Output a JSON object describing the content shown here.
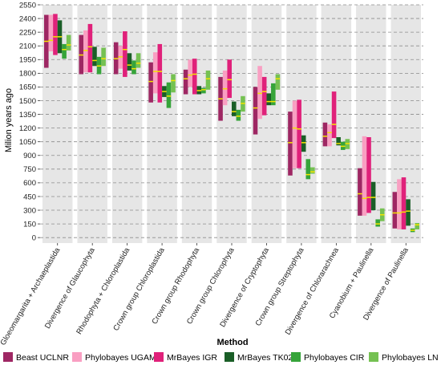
{
  "chart_data": {
    "type": "range-bar",
    "title": "",
    "xlabel": "Method",
    "ylabel": "Milion years ago",
    "ylim": [
      0,
      2500
    ],
    "yticks": [
      0,
      150,
      300,
      450,
      600,
      750,
      900,
      1050,
      1200,
      1350,
      1500,
      1650,
      1800,
      1950,
      2100,
      2250,
      2400,
      2550
    ],
    "grid": true,
    "legend_position": "bottom",
    "categories": [
      "Gloeomargarita + Archaeplastida",
      "Divergence of Glaucophyta",
      "Rhodophyta + Chloroplastida",
      "Crown group Chloroplastida",
      "Crown group Rhodophyta",
      "Crown group Chlorophyta",
      "Divergence of Cryptophyta",
      "Crown group Streptophyta",
      "Divergence of Chlorarachnea",
      "Cyanobium + Paulinella",
      "Divergence of Paulinella"
    ],
    "median_color": "#f4e300",
    "series": [
      {
        "name": "Beast UCLNR",
        "color": "#9e2763",
        "ranges": [
          [
            1860,
            2440
          ],
          [
            1790,
            2220
          ],
          [
            1790,
            2140
          ],
          [
            1480,
            1920
          ],
          [
            1570,
            1840
          ],
          [
            1280,
            1760
          ],
          [
            1130,
            1650
          ],
          [
            680,
            1380
          ],
          [
            1000,
            1260
          ],
          [
            240,
            760
          ],
          [
            100,
            500
          ]
        ],
        "medians": [
          2150,
          2000,
          1960,
          1710,
          1740,
          1520,
          1420,
          1040,
          1110,
          480,
          270
        ]
      },
      {
        "name": "Phylobayes UGAM",
        "color": "#f99fc2",
        "ranges": [
          [
            2040,
            2440
          ],
          [
            1810,
            2270
          ],
          [
            1850,
            2100
          ],
          [
            1580,
            2030
          ],
          [
            1650,
            1950
          ],
          [
            1450,
            1830
          ],
          [
            1300,
            1880
          ],
          [
            760,
            1500
          ],
          [
            1000,
            1240
          ],
          [
            240,
            1110
          ],
          [
            90,
            640
          ]
        ],
        "medians": [
          2160,
          2050,
          1980,
          1820,
          1780,
          1630,
          1580,
          1200,
          1150,
          430,
          270
        ]
      },
      {
        "name": "MrBayes IGR",
        "color": "#e0217a",
        "ranges": [
          [
            2000,
            2450
          ],
          [
            1810,
            2340
          ],
          [
            1760,
            2260
          ],
          [
            1480,
            2120
          ],
          [
            1570,
            1960
          ],
          [
            1530,
            1950
          ],
          [
            1340,
            1760
          ],
          [
            760,
            1510
          ],
          [
            1090,
            1600
          ],
          [
            270,
            1100
          ],
          [
            90,
            660
          ]
        ],
        "medians": [
          2200,
          2090,
          2060,
          1820,
          1790,
          1730,
          1600,
          1190,
          1240,
          440,
          280
        ]
      },
      {
        "name": "MrBayes TK02",
        "color": "#1a5e27",
        "ranges": [
          [
            2020,
            2380
          ],
          [
            1880,
            2090
          ],
          [
            1830,
            2020
          ],
          [
            1540,
            1660
          ],
          [
            1570,
            1660
          ],
          [
            1330,
            1490
          ],
          [
            1450,
            1580
          ],
          [
            940,
            1120
          ],
          [
            1010,
            1100
          ],
          [
            300,
            610
          ],
          [
            130,
            420
          ]
        ],
        "medians": [
          2200,
          1940,
          1890,
          1600,
          1610,
          1380,
          1490,
          1040,
          1030,
          440,
          290
        ]
      },
      {
        "name": "Phylobayes CIR",
        "color": "#36a43a",
        "ranges": [
          [
            1960,
            2120
          ],
          [
            1790,
            1980
          ],
          [
            1790,
            1940
          ],
          [
            1420,
            1700
          ],
          [
            1580,
            1640
          ],
          [
            1280,
            1400
          ],
          [
            1450,
            1690
          ],
          [
            640,
            860
          ],
          [
            960,
            1050
          ],
          [
            120,
            200
          ],
          [
            60,
            100
          ]
        ],
        "medians": [
          2060,
          1880,
          1850,
          1550,
          1620,
          1330,
          1490,
          690,
          1000,
          150,
          80
        ]
      },
      {
        "name": "Phylobayes LN",
        "color": "#75c152",
        "ranges": [
          [
            2050,
            2220
          ],
          [
            1880,
            2080
          ],
          [
            1860,
            2020
          ],
          [
            1590,
            1790
          ],
          [
            1620,
            1830
          ],
          [
            1380,
            1550
          ],
          [
            1620,
            1790
          ],
          [
            700,
            770
          ],
          [
            970,
            1080
          ],
          [
            180,
            320
          ],
          [
            90,
            160
          ]
        ],
        "medians": [
          2110,
          1960,
          1910,
          1720,
          1740,
          1470,
          1740,
          720,
          1030,
          250,
          140
        ]
      }
    ]
  }
}
